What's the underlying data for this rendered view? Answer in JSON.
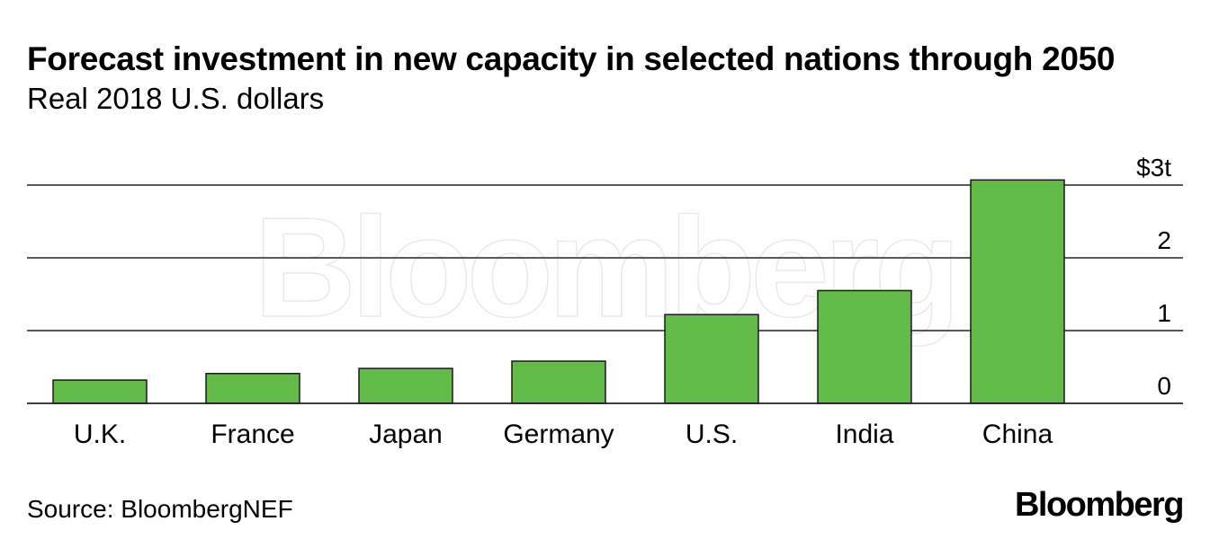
{
  "chart_data": {
    "type": "bar",
    "title": "Forecast investment in new capacity in selected nations through 2050",
    "subtitle": "Real 2018 U.S. dollars",
    "categories": [
      "U.K.",
      "France",
      "Japan",
      "Germany",
      "U.S.",
      "India",
      "China"
    ],
    "values": [
      0.32,
      0.41,
      0.48,
      0.58,
      1.22,
      1.55,
      3.07
    ],
    "unit": "trillion USD",
    "ylim": [
      0,
      3
    ],
    "yticks": [
      {
        "value": 0,
        "label": "0"
      },
      {
        "value": 1,
        "label": "1"
      },
      {
        "value": 2,
        "label": "2"
      },
      {
        "value": 3,
        "label": "$3t"
      }
    ],
    "grid": true,
    "bar_color": "#61bb46",
    "bar_stroke": "#1a1a1a",
    "source": "Source: BloombergNEF",
    "watermark": "Bloomberg"
  },
  "footer": {
    "source": "Source: BloombergNEF",
    "logo": "Bloomberg"
  }
}
